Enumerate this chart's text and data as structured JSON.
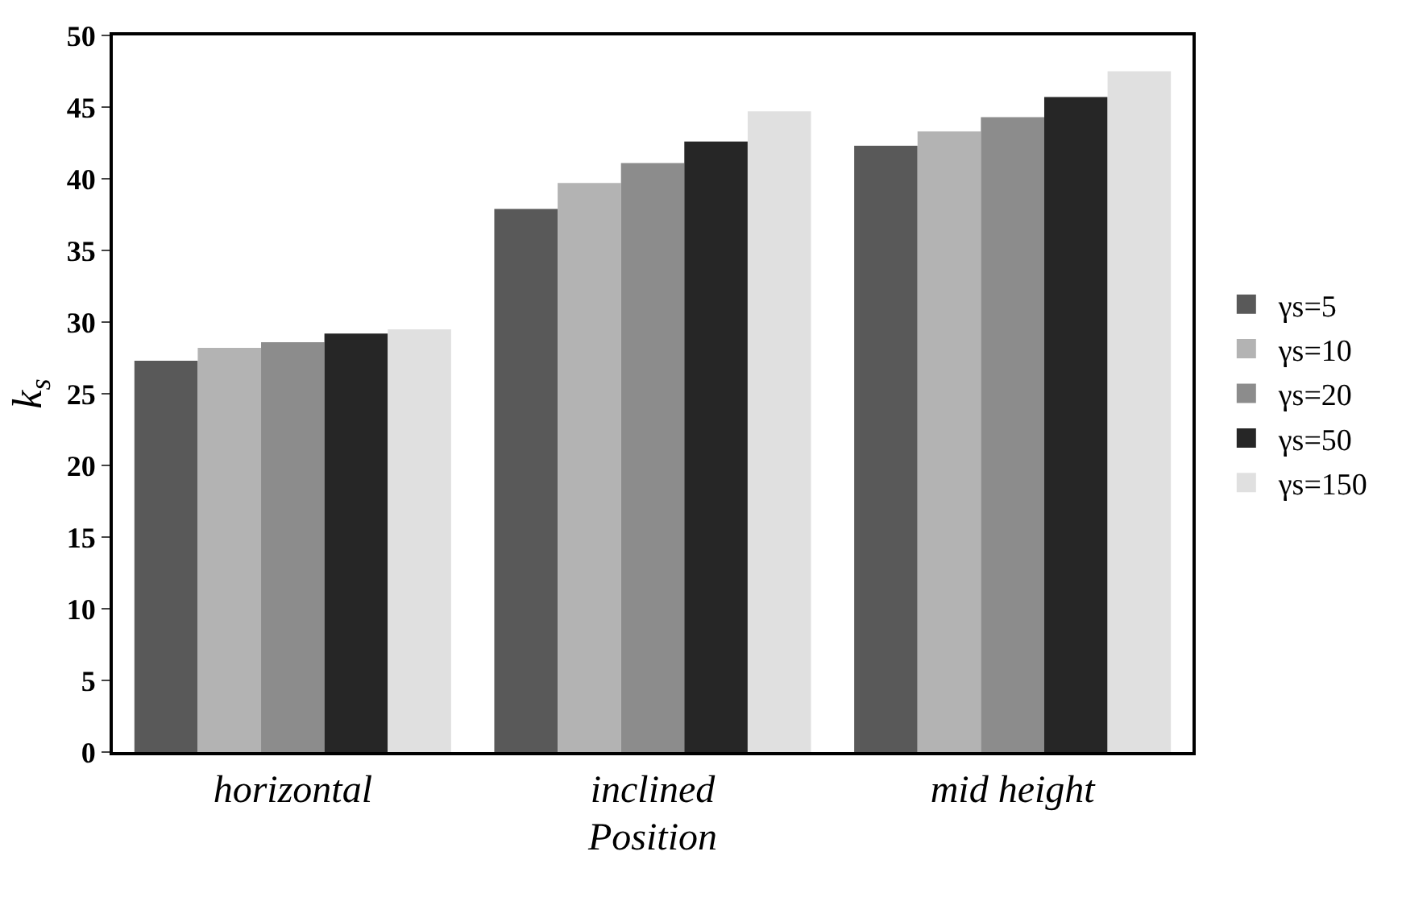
{
  "chart_data": {
    "type": "bar",
    "xlabel": "Position",
    "ylabel": "k$_{s}$",
    "categories": [
      "horizontal",
      "inclined",
      "mid height"
    ],
    "series": [
      {
        "name": "γs=5",
        "color": "#595959",
        "values": [
          27.3,
          37.9,
          42.3
        ]
      },
      {
        "name": "γs=10",
        "color": "#b3b3b3",
        "values": [
          28.2,
          39.7,
          43.3
        ]
      },
      {
        "name": "γs=20",
        "color": "#8c8c8c",
        "values": [
          28.6,
          41.1,
          44.3
        ]
      },
      {
        "name": "γs=50",
        "color": "#262626",
        "values": [
          29.2,
          42.6,
          45.7
        ]
      },
      {
        "name": "γs=150",
        "color": "#e0e0e0",
        "values": [
          29.5,
          44.7,
          47.5
        ]
      }
    ],
    "ylim": [
      0,
      50
    ],
    "yticks": [
      0,
      5,
      10,
      15,
      20,
      25,
      30,
      35,
      40,
      45,
      50
    ],
    "legend": "right"
  }
}
